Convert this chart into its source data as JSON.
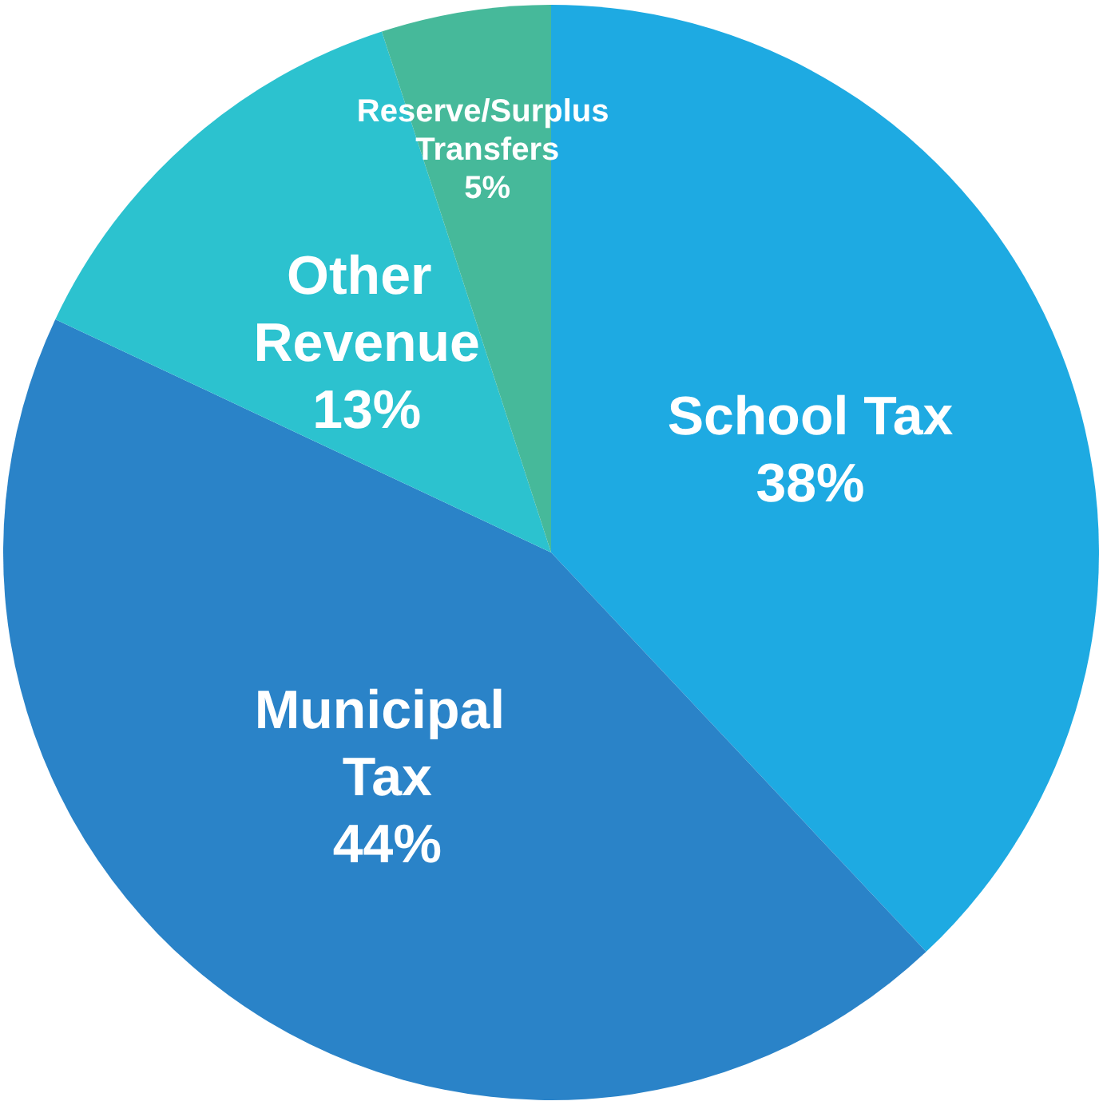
{
  "chart_data": {
    "type": "pie",
    "categories": [
      "School Tax",
      "Municipal Tax",
      "Other Revenue",
      "Reserve/Surplus Transfers"
    ],
    "values": [
      38,
      44,
      13,
      5
    ],
    "value_labels": [
      "38%",
      "44%",
      "13%",
      "5%"
    ],
    "colors": [
      "#1eaae2",
      "#2a83c8",
      "#2cc2cf",
      "#46b99a"
    ],
    "legend": false
  }
}
